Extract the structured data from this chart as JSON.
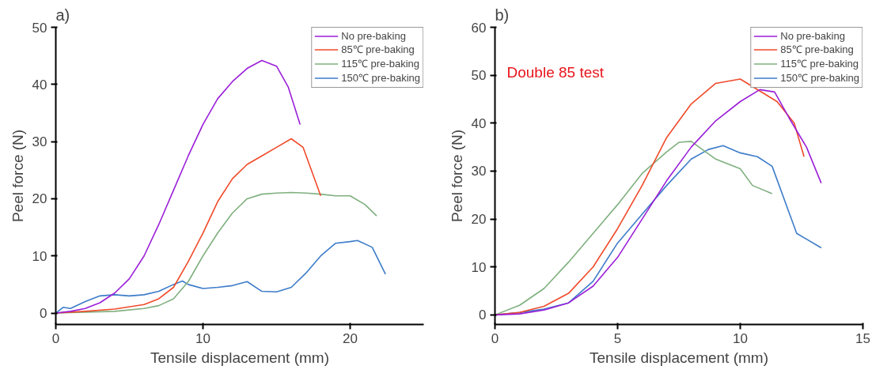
{
  "chart_data": [
    {
      "type": "line",
      "title": "a)",
      "xlabel": "Tensile displacement (mm)",
      "ylabel": "Peel force (N)",
      "xlim": [
        0,
        25
      ],
      "ylim": [
        -2,
        50
      ],
      "xticks": [
        0,
        10,
        20
      ],
      "yticks": [
        0,
        10,
        20,
        30,
        40,
        50
      ],
      "grid": false,
      "legend": "top right",
      "marker": "none",
      "line_style": "solid",
      "series": [
        {
          "name": "No pre-baking",
          "color": "#9b1fd8",
          "x": [
            0,
            1,
            2,
            3,
            4,
            5,
            6,
            7,
            8,
            9,
            10,
            11,
            12,
            13,
            14,
            15,
            15.8,
            16.6
          ],
          "values": [
            0,
            0.3,
            0.8,
            1.8,
            3.5,
            6,
            10,
            15.5,
            21.5,
            27.5,
            33,
            37.5,
            40.5,
            42.8,
            44.2,
            43.2,
            39.5,
            33
          ]
        },
        {
          "name": "85℃ pre-baking",
          "color": "#f04a2a",
          "x": [
            0,
            2,
            4,
            6,
            7,
            8,
            9,
            10,
            11,
            12,
            13,
            14,
            15,
            16,
            16.8,
            18
          ],
          "values": [
            0,
            0.3,
            0.7,
            1.5,
            2.5,
            4.5,
            9,
            14,
            19.5,
            23.5,
            26,
            27.5,
            29,
            30.5,
            29,
            20.5
          ]
        },
        {
          "name": "115℃ pre-baking",
          "color": "#7fb07f",
          "x": [
            0,
            4,
            6,
            7,
            8,
            9,
            10,
            11,
            12,
            13,
            14,
            15,
            16,
            17,
            18,
            19,
            20,
            21,
            21.8
          ],
          "values": [
            0,
            0.3,
            0.8,
            1.3,
            2.5,
            5.5,
            10,
            14,
            17.5,
            20,
            20.8,
            21,
            21.1,
            21,
            20.8,
            20.5,
            20.5,
            19,
            17
          ]
        },
        {
          "name": "150℃ pre-baking",
          "color": "#3d7cc9",
          "x": [
            0,
            0.5,
            1,
            2,
            3,
            4,
            5,
            6,
            7,
            8,
            8.6,
            9,
            10,
            11,
            12,
            13,
            14,
            15,
            16,
            17,
            18,
            19,
            20,
            20.5,
            21.5,
            22.4
          ],
          "values": [
            0,
            1,
            0.8,
            2,
            3,
            3.2,
            3,
            3.2,
            3.8,
            5,
            5.6,
            5,
            4.3,
            4.5,
            4.8,
            5.5,
            3.8,
            3.7,
            4.5,
            7,
            10,
            12.2,
            12.5,
            12.7,
            11.5,
            6.8
          ]
        }
      ]
    },
    {
      "type": "line",
      "title": "b)",
      "xlabel": "Tensile displacement (mm)",
      "ylabel": "Peel force (N)",
      "xlim": [
        0,
        15
      ],
      "ylim": [
        -2,
        60
      ],
      "xticks": [
        0,
        5,
        10,
        15
      ],
      "yticks": [
        0,
        10,
        20,
        30,
        40,
        50,
        60
      ],
      "grid": false,
      "legend": "top right",
      "marker": "none",
      "line_style": "solid",
      "annotations": [
        "Double 85 test"
      ],
      "series": [
        {
          "name": "No pre-baking",
          "color": "#9b1fd8",
          "x": [
            0,
            1,
            2,
            3,
            4,
            5,
            6,
            7,
            8,
            9,
            10,
            10.8,
            11.4,
            12,
            12.7,
            13.3
          ],
          "values": [
            0,
            0.2,
            1,
            2.5,
            6,
            12,
            20,
            28,
            35,
            40.5,
            44.5,
            47,
            46.5,
            41,
            35,
            27.5
          ]
        },
        {
          "name": "85℃ pre-baking",
          "color": "#f04a2a",
          "x": [
            0,
            1,
            2,
            3,
            4,
            5,
            6,
            7,
            8,
            9,
            10,
            11.5,
            12.2,
            12.6
          ],
          "values": [
            0,
            0.5,
            1.8,
            4.5,
            10,
            18,
            27,
            37,
            44,
            48.3,
            49.2,
            44.5,
            40,
            33
          ]
        },
        {
          "name": "115℃ pre-baking",
          "color": "#7fb07f",
          "x": [
            0,
            1,
            2,
            3,
            4,
            5,
            6,
            7,
            7.5,
            8,
            9,
            10,
            10.5,
            11.3
          ],
          "values": [
            0,
            2,
            5.5,
            11,
            17,
            23,
            29.5,
            34,
            36,
            36.2,
            32.5,
            30.5,
            27,
            25.3
          ]
        },
        {
          "name": "150℃ pre-baking",
          "color": "#3d7cc9",
          "x": [
            0,
            1,
            2,
            3,
            4,
            5,
            6,
            7,
            8,
            8.7,
            9.3,
            10,
            10.7,
            11.3,
            12.3,
            13.3
          ],
          "values": [
            0,
            0.5,
            1.2,
            2.5,
            7,
            15,
            21,
            27,
            32.5,
            34.5,
            35.3,
            33.8,
            33,
            31,
            17,
            14
          ]
        }
      ]
    }
  ]
}
